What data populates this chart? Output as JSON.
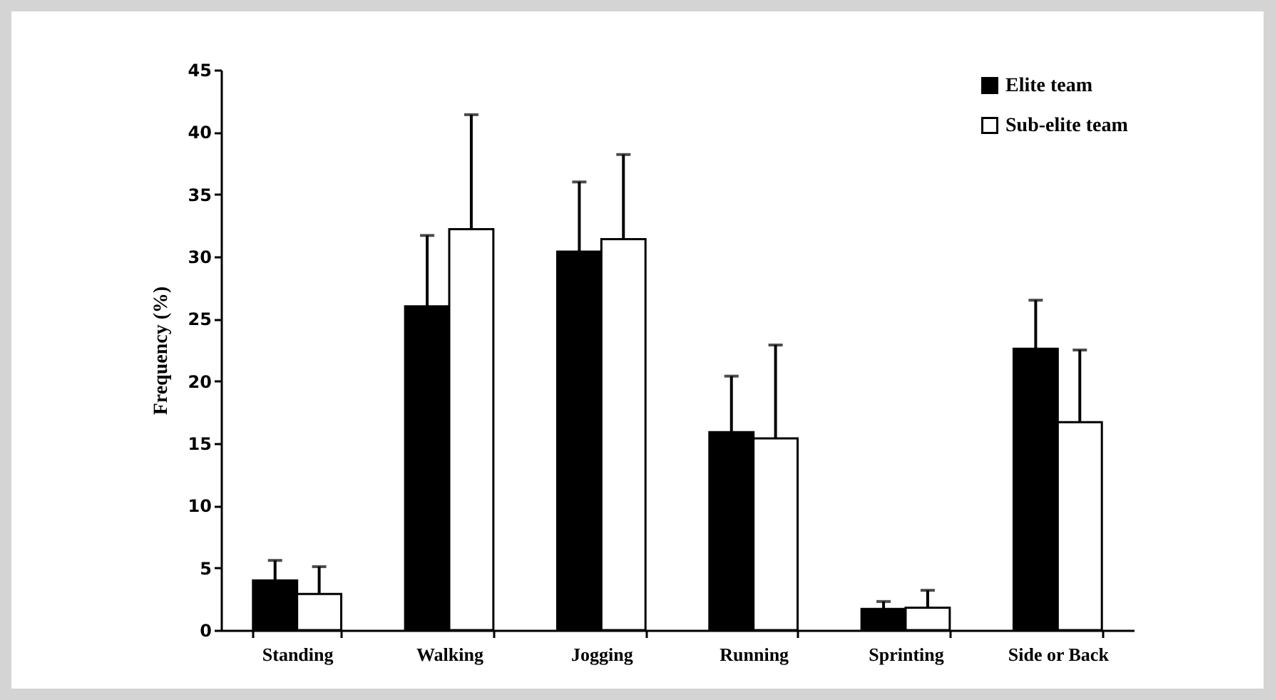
{
  "chart_data": {
    "type": "bar",
    "ylabel": "Frequency (%)",
    "categories": [
      "Standing",
      "Walking",
      "Jogging",
      "Running",
      "Sprinting",
      "Side or Back"
    ],
    "series": [
      {
        "name": "Elite team",
        "color": "#000000",
        "values": [
          4.0,
          26.0,
          30.4,
          15.9,
          1.7,
          22.6
        ],
        "errors": [
          [
            4.0,
            5.6
          ],
          [
            26.0,
            31.7
          ],
          [
            30.4,
            36.0
          ],
          [
            15.9,
            20.4
          ],
          [
            1.7,
            2.3
          ],
          [
            22.6,
            26.5
          ]
        ]
      },
      {
        "name": "Sub-elite team",
        "color": "#ffffff",
        "values": [
          2.9,
          32.2,
          31.4,
          15.4,
          1.8,
          16.7
        ],
        "errors": [
          [
            2.9,
            5.1
          ],
          [
            32.2,
            41.4
          ],
          [
            31.4,
            38.2
          ],
          [
            15.4,
            22.9
          ],
          [
            1.8,
            3.2
          ],
          [
            16.7,
            22.5
          ]
        ]
      }
    ],
    "ylim": [
      0,
      45
    ],
    "yticks": [
      0,
      5,
      10,
      15,
      20,
      25,
      30,
      35,
      40,
      45
    ],
    "grid": false,
    "legend": "top right"
  }
}
